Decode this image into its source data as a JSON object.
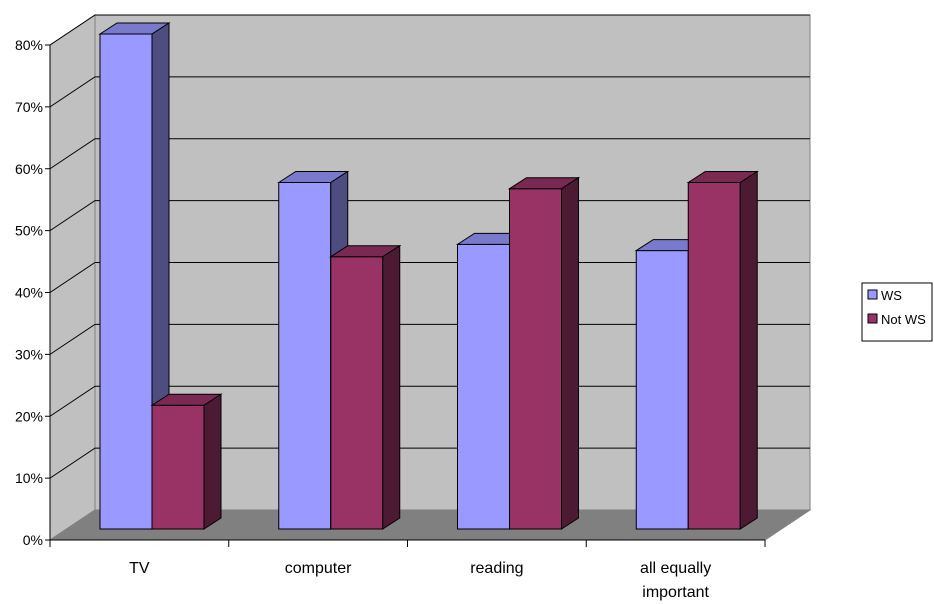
{
  "chart_data": {
    "type": "bar",
    "categories": [
      "TV",
      "computer",
      "reading",
      "all equally important"
    ],
    "series": [
      {
        "name": "WS",
        "values": [
          80,
          56,
          46,
          45
        ]
      },
      {
        "name": "Not WS",
        "values": [
          20,
          44,
          55,
          56
        ]
      }
    ],
    "ylim": [
      0,
      80
    ],
    "yticks": [
      "0%",
      "10%",
      "20%",
      "30%",
      "40%",
      "50%",
      "60%",
      "70%",
      "80%"
    ],
    "grid": true,
    "three_d": true,
    "legend_position": "right",
    "colors": {
      "WS": "#9999ff",
      "Not WS": "#993366",
      "wall": "#c0c0c0",
      "floor": "#808080"
    }
  }
}
